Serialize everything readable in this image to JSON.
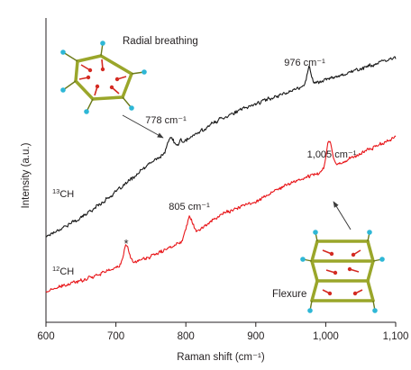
{
  "chart_data": {
    "type": "line",
    "xlabel": "Raman shift (cm⁻¹)",
    "ylabel": "Intensity (a.u.)",
    "xlim": [
      600,
      1100
    ],
    "xticks": [
      600,
      700,
      800,
      900,
      1000,
      1100
    ],
    "xtick_labels": [
      "600",
      "700",
      "800",
      "900",
      "1,000",
      "1,100"
    ],
    "y_ticks_shown": false,
    "grid": false,
    "series": [
      {
        "name": "¹³CH",
        "name_sup": "13",
        "name_base": "CH",
        "color": "#1a1a1a",
        "baseline": [
          [
            600,
            0.12
          ],
          [
            650,
            0.22
          ],
          [
            700,
            0.36
          ],
          [
            750,
            0.52
          ],
          [
            800,
            0.64
          ],
          [
            850,
            0.76
          ],
          [
            900,
            0.84
          ],
          [
            950,
            0.91
          ],
          [
            1000,
            0.97
          ],
          [
            1050,
            1.03
          ],
          [
            1100,
            1.09
          ]
        ],
        "peaks": [
          [
            778,
            0.07,
            4
          ],
          [
            792,
            0.025,
            1.5
          ],
          [
            976,
            0.1,
            3
          ]
        ],
        "noise": 0.012
      },
      {
        "name": "¹²CH",
        "name_sup": "12",
        "name_base": "CH",
        "color": "#e8161a",
        "baseline": [
          [
            600,
            -0.18
          ],
          [
            650,
            -0.12
          ],
          [
            700,
            -0.05
          ],
          [
            750,
            0.01
          ],
          [
            800,
            0.1
          ],
          [
            850,
            0.24
          ],
          [
            900,
            0.31
          ],
          [
            950,
            0.41
          ],
          [
            1000,
            0.48
          ],
          [
            1050,
            0.57
          ],
          [
            1100,
            0.66
          ]
        ],
        "peaks": [
          [
            715,
            0.1,
            4
          ],
          [
            805,
            0.11,
            5
          ],
          [
            1005,
            0.15,
            4
          ]
        ],
        "noise": 0.012
      }
    ],
    "annotations": [
      {
        "text": "976 cm⁻¹",
        "x": 976
      },
      {
        "text": "778 cm⁻¹",
        "x": 778
      },
      {
        "text": "805 cm⁻¹",
        "x": 805
      },
      {
        "text": "1,005 cm⁻¹",
        "x": 1005
      },
      {
        "text": "*",
        "x": 715
      }
    ],
    "insets": [
      {
        "label": "Radial breathing"
      },
      {
        "label": "Flexure"
      }
    ]
  }
}
